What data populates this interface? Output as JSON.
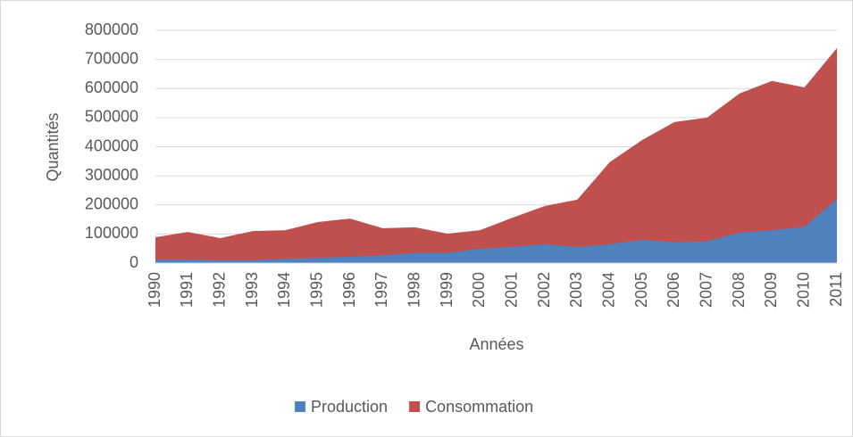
{
  "chart_data": {
    "type": "area",
    "xlabel": "Années",
    "ylabel": "Quantités",
    "categories": [
      "1990",
      "1991",
      "1992",
      "1993",
      "1994",
      "1995",
      "1996",
      "1997",
      "1998",
      "1999",
      "2000",
      "2001",
      "2002",
      "2003",
      "2004",
      "2005",
      "2006",
      "2007",
      "2008",
      "2009",
      "2010",
      "2011"
    ],
    "series": [
      {
        "name": "Production",
        "color": "#4f81bd",
        "values": [
          12000,
          12000,
          10000,
          10000,
          15000,
          18000,
          22000,
          27000,
          35000,
          35000,
          50000,
          56000,
          65000,
          55000,
          65000,
          80000,
          72000,
          75000,
          105000,
          113000,
          125000,
          220000
        ]
      },
      {
        "name": "Consommation",
        "color": "#c0504d",
        "values": [
          89000,
          107000,
          86000,
          110000,
          113000,
          141000,
          153000,
          120000,
          123000,
          101000,
          113000,
          156000,
          196000,
          218000,
          347000,
          423000,
          485000,
          500000,
          583000,
          626000,
          604000,
          739000
        ]
      }
    ],
    "ylim": [
      0,
      800000
    ],
    "yticks": [
      0,
      100000,
      200000,
      300000,
      400000,
      500000,
      600000,
      700000,
      800000
    ],
    "grid": true,
    "legend": "bottom"
  }
}
